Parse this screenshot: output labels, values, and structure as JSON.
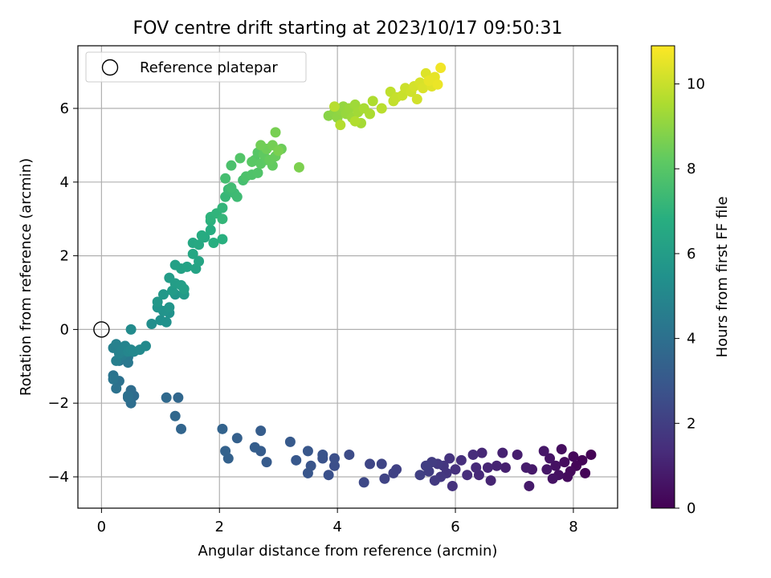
{
  "chart_data": {
    "type": "scatter",
    "title": "FOV centre drift starting at 2023/10/17 09:50:31",
    "xlabel": "Angular distance from reference (arcmin)",
    "ylabel": "Rotation from reference (arcmin)",
    "xlim": [
      -0.4,
      8.75
    ],
    "ylim": [
      -4.85,
      7.7
    ],
    "xticks": [
      0,
      2,
      4,
      6,
      8
    ],
    "yticks": [
      -4,
      -2,
      0,
      2,
      4,
      6
    ],
    "grid": true,
    "legend": {
      "placement": "top-left",
      "entries": [
        "Reference platepar"
      ]
    },
    "reference_point": {
      "x": 0,
      "y": 0,
      "marker": "open-circle"
    },
    "colorbar": {
      "label": "Hours from first FF file",
      "colormap": "viridis",
      "range": [
        0,
        10.9
      ],
      "ticks": [
        0,
        2,
        4,
        6,
        8,
        10
      ]
    },
    "series": [
      {
        "color_variable": "hours",
        "points": [
          [
            8.3,
            -3.4,
            0.05
          ],
          [
            8.2,
            -3.9,
            0.1
          ],
          [
            8.15,
            -3.55,
            0.12
          ],
          [
            8.05,
            -3.7,
            0.15
          ],
          [
            8.0,
            -3.45,
            0.2
          ],
          [
            7.95,
            -3.85,
            0.25
          ],
          [
            7.9,
            -4.0,
            0.3
          ],
          [
            7.85,
            -3.6,
            0.35
          ],
          [
            7.8,
            -3.25,
            0.4
          ],
          [
            7.75,
            -3.95,
            0.45
          ],
          [
            7.7,
            -3.7,
            0.5
          ],
          [
            7.65,
            -4.05,
            0.55
          ],
          [
            7.6,
            -3.5,
            0.6
          ],
          [
            7.55,
            -3.8,
            0.65
          ],
          [
            7.5,
            -3.3,
            0.7
          ],
          [
            7.3,
            -3.8,
            0.75
          ],
          [
            7.25,
            -4.25,
            0.8
          ],
          [
            7.2,
            -3.75,
            0.85
          ],
          [
            7.05,
            -3.4,
            0.9
          ],
          [
            6.85,
            -3.75,
            0.95
          ],
          [
            6.8,
            -3.35,
            1.0
          ],
          [
            6.7,
            -3.7,
            1.05
          ],
          [
            6.6,
            -4.1,
            1.1
          ],
          [
            6.55,
            -3.75,
            1.15
          ],
          [
            6.45,
            -3.35,
            1.2
          ],
          [
            6.4,
            -3.95,
            1.25
          ],
          [
            6.35,
            -3.75,
            1.3
          ],
          [
            6.3,
            -3.4,
            1.35
          ],
          [
            6.2,
            -3.95,
            1.4
          ],
          [
            6.1,
            -3.55,
            1.45
          ],
          [
            6.0,
            -3.8,
            1.5
          ],
          [
            5.95,
            -4.25,
            1.55
          ],
          [
            5.9,
            -3.5,
            1.6
          ],
          [
            5.85,
            -3.9,
            1.65
          ],
          [
            5.8,
            -3.7,
            1.7
          ],
          [
            5.75,
            -4.0,
            1.75
          ],
          [
            5.7,
            -3.65,
            1.8
          ],
          [
            5.65,
            -4.1,
            1.85
          ],
          [
            5.6,
            -3.6,
            1.9
          ],
          [
            5.55,
            -3.85,
            1.95
          ],
          [
            5.5,
            -3.7,
            2.0
          ],
          [
            5.4,
            -3.95,
            2.05
          ],
          [
            5.0,
            -3.8,
            2.1
          ],
          [
            4.95,
            -3.9,
            2.15
          ],
          [
            4.8,
            -4.05,
            2.2
          ],
          [
            4.75,
            -3.65,
            2.25
          ],
          [
            4.55,
            -3.65,
            2.3
          ],
          [
            4.45,
            -4.15,
            2.4
          ],
          [
            4.2,
            -3.4,
            2.5
          ],
          [
            3.95,
            -3.7,
            2.6
          ],
          [
            3.95,
            -3.5,
            2.65
          ],
          [
            3.85,
            -3.95,
            2.7
          ],
          [
            3.75,
            -3.5,
            2.75
          ],
          [
            3.75,
            -3.4,
            2.8
          ],
          [
            3.55,
            -3.7,
            2.85
          ],
          [
            3.5,
            -3.9,
            2.9
          ],
          [
            3.5,
            -3.3,
            2.95
          ],
          [
            3.3,
            -3.55,
            3.0
          ],
          [
            3.2,
            -3.05,
            3.05
          ],
          [
            2.8,
            -3.6,
            3.1
          ],
          [
            2.7,
            -3.3,
            3.15
          ],
          [
            2.7,
            -2.75,
            3.2
          ],
          [
            2.6,
            -3.2,
            3.25
          ],
          [
            2.3,
            -2.95,
            3.3
          ],
          [
            2.15,
            -3.5,
            3.35
          ],
          [
            2.1,
            -3.3,
            3.4
          ],
          [
            2.05,
            -2.7,
            3.45
          ],
          [
            1.35,
            -2.7,
            3.55
          ],
          [
            1.3,
            -1.85,
            3.6
          ],
          [
            1.25,
            -2.35,
            3.65
          ],
          [
            1.1,
            -1.85,
            3.7
          ],
          [
            0.55,
            -1.8,
            3.8
          ],
          [
            0.5,
            -1.65,
            3.85
          ],
          [
            0.5,
            -2.0,
            3.9
          ],
          [
            0.45,
            -1.85,
            3.95
          ],
          [
            0.45,
            -1.8,
            4.0
          ],
          [
            0.3,
            -1.4,
            4.05
          ],
          [
            0.25,
            -1.6,
            4.1
          ],
          [
            0.2,
            -1.25,
            4.15
          ],
          [
            0.2,
            -1.35,
            4.2
          ],
          [
            0.3,
            -0.85,
            4.3
          ],
          [
            0.45,
            -0.9,
            4.35
          ],
          [
            0.45,
            -0.75,
            4.4
          ],
          [
            0.5,
            -0.6,
            4.45
          ],
          [
            0.4,
            -0.45,
            4.5
          ],
          [
            0.35,
            -0.7,
            4.55
          ],
          [
            0.3,
            -0.55,
            4.6
          ],
          [
            0.25,
            -0.85,
            4.65
          ],
          [
            0.2,
            -0.5,
            4.7
          ],
          [
            0.25,
            -0.4,
            4.75
          ],
          [
            0.3,
            -0.65,
            4.8
          ],
          [
            0.35,
            -0.55,
            4.85
          ],
          [
            0.4,
            -0.45,
            4.9
          ],
          [
            0.45,
            -0.6,
            4.95
          ],
          [
            0.5,
            -0.55,
            5.0
          ],
          [
            0.55,
            -0.6,
            5.05
          ],
          [
            0.65,
            -0.55,
            5.1
          ],
          [
            0.75,
            -0.45,
            5.15
          ],
          [
            0.5,
            0.0,
            5.2
          ],
          [
            0.85,
            0.15,
            5.3
          ],
          [
            1.0,
            0.25,
            5.4
          ],
          [
            1.1,
            0.2,
            5.45
          ],
          [
            1.15,
            0.45,
            5.5
          ],
          [
            1.05,
            0.5,
            5.55
          ],
          [
            0.95,
            0.6,
            5.6
          ],
          [
            1.15,
            0.6,
            5.65
          ],
          [
            1.25,
            0.95,
            5.7
          ],
          [
            0.95,
            0.75,
            5.75
          ],
          [
            1.05,
            0.95,
            5.8
          ],
          [
            1.4,
            0.95,
            5.85
          ],
          [
            1.2,
            1.05,
            5.9
          ],
          [
            1.15,
            1.4,
            5.95
          ],
          [
            1.25,
            1.25,
            6.0
          ],
          [
            1.35,
            1.2,
            6.05
          ],
          [
            1.4,
            1.1,
            6.1
          ],
          [
            1.25,
            1.75,
            6.15
          ],
          [
            1.35,
            1.65,
            6.2
          ],
          [
            1.45,
            1.7,
            6.25
          ],
          [
            1.6,
            1.65,
            6.3
          ],
          [
            1.65,
            1.85,
            6.35
          ],
          [
            1.55,
            2.05,
            6.45
          ],
          [
            1.55,
            2.35,
            6.5
          ],
          [
            1.65,
            2.3,
            6.55
          ],
          [
            1.75,
            2.5,
            6.6
          ],
          [
            1.7,
            2.55,
            6.65
          ],
          [
            1.85,
            2.7,
            6.7
          ],
          [
            1.9,
            2.35,
            6.8
          ],
          [
            2.05,
            2.45,
            6.85
          ],
          [
            1.85,
            2.95,
            6.9
          ],
          [
            1.85,
            3.05,
            7.0
          ],
          [
            1.95,
            3.15,
            7.05
          ],
          [
            2.05,
            3.3,
            7.1
          ],
          [
            2.05,
            3.0,
            7.15
          ],
          [
            2.1,
            3.6,
            7.2
          ],
          [
            2.15,
            3.8,
            7.3
          ],
          [
            2.25,
            3.7,
            7.35
          ],
          [
            2.3,
            3.6,
            7.4
          ],
          [
            2.2,
            3.85,
            7.45
          ],
          [
            2.1,
            4.1,
            7.55
          ],
          [
            2.4,
            4.05,
            7.6
          ],
          [
            2.2,
            4.45,
            7.7
          ],
          [
            2.45,
            4.15,
            7.75
          ],
          [
            2.55,
            4.2,
            7.8
          ],
          [
            2.65,
            4.25,
            7.85
          ],
          [
            2.35,
            4.65,
            7.9
          ],
          [
            2.6,
            4.6,
            7.95
          ],
          [
            2.65,
            4.8,
            8.0
          ],
          [
            2.55,
            4.55,
            8.05
          ],
          [
            2.7,
            4.5,
            8.1
          ],
          [
            2.8,
            4.6,
            8.15
          ],
          [
            2.75,
            4.75,
            8.2
          ],
          [
            2.9,
            4.45,
            8.25
          ],
          [
            2.85,
            4.6,
            8.3
          ],
          [
            2.95,
            4.7,
            8.35
          ],
          [
            3.05,
            4.9,
            8.4
          ],
          [
            2.8,
            4.9,
            8.45
          ],
          [
            2.7,
            5.0,
            8.5
          ],
          [
            2.9,
            5.0,
            8.55
          ],
          [
            2.95,
            5.35,
            8.6
          ],
          [
            3.0,
            4.85,
            8.65
          ],
          [
            3.35,
            4.4,
            8.7
          ],
          [
            3.85,
            5.8,
            8.9
          ],
          [
            3.95,
            5.9,
            8.95
          ],
          [
            4.0,
            5.75,
            9.0
          ],
          [
            4.05,
            5.95,
            9.05
          ],
          [
            4.1,
            6.05,
            9.1
          ],
          [
            4.15,
            5.85,
            9.15
          ],
          [
            4.2,
            6.0,
            9.2
          ],
          [
            4.25,
            5.75,
            9.25
          ],
          [
            4.3,
            6.1,
            9.3
          ],
          [
            4.35,
            5.9,
            9.35
          ],
          [
            4.4,
            5.6,
            9.4
          ],
          [
            4.45,
            6.0,
            9.45
          ],
          [
            4.55,
            5.85,
            9.5
          ],
          [
            4.6,
            6.2,
            9.55
          ],
          [
            4.3,
            5.65,
            9.6
          ],
          [
            4.05,
            5.55,
            9.65
          ],
          [
            3.95,
            6.05,
            9.7
          ],
          [
            4.75,
            6.0,
            9.75
          ],
          [
            4.9,
            6.45,
            9.85
          ],
          [
            4.95,
            6.2,
            9.9
          ],
          [
            5.0,
            6.3,
            9.95
          ],
          [
            5.1,
            6.35,
            10.0
          ],
          [
            5.15,
            6.55,
            10.05
          ],
          [
            5.25,
            6.45,
            10.1
          ],
          [
            5.35,
            6.25,
            10.15
          ],
          [
            5.3,
            6.6,
            10.2
          ],
          [
            5.4,
            6.7,
            10.25
          ],
          [
            5.45,
            6.55,
            10.3
          ],
          [
            5.5,
            6.95,
            10.35
          ],
          [
            5.6,
            6.6,
            10.4
          ],
          [
            5.65,
            6.85,
            10.5
          ],
          [
            5.55,
            6.75,
            10.55
          ],
          [
            5.7,
            6.65,
            10.6
          ],
          [
            5.75,
            7.1,
            10.7
          ]
        ]
      }
    ]
  }
}
